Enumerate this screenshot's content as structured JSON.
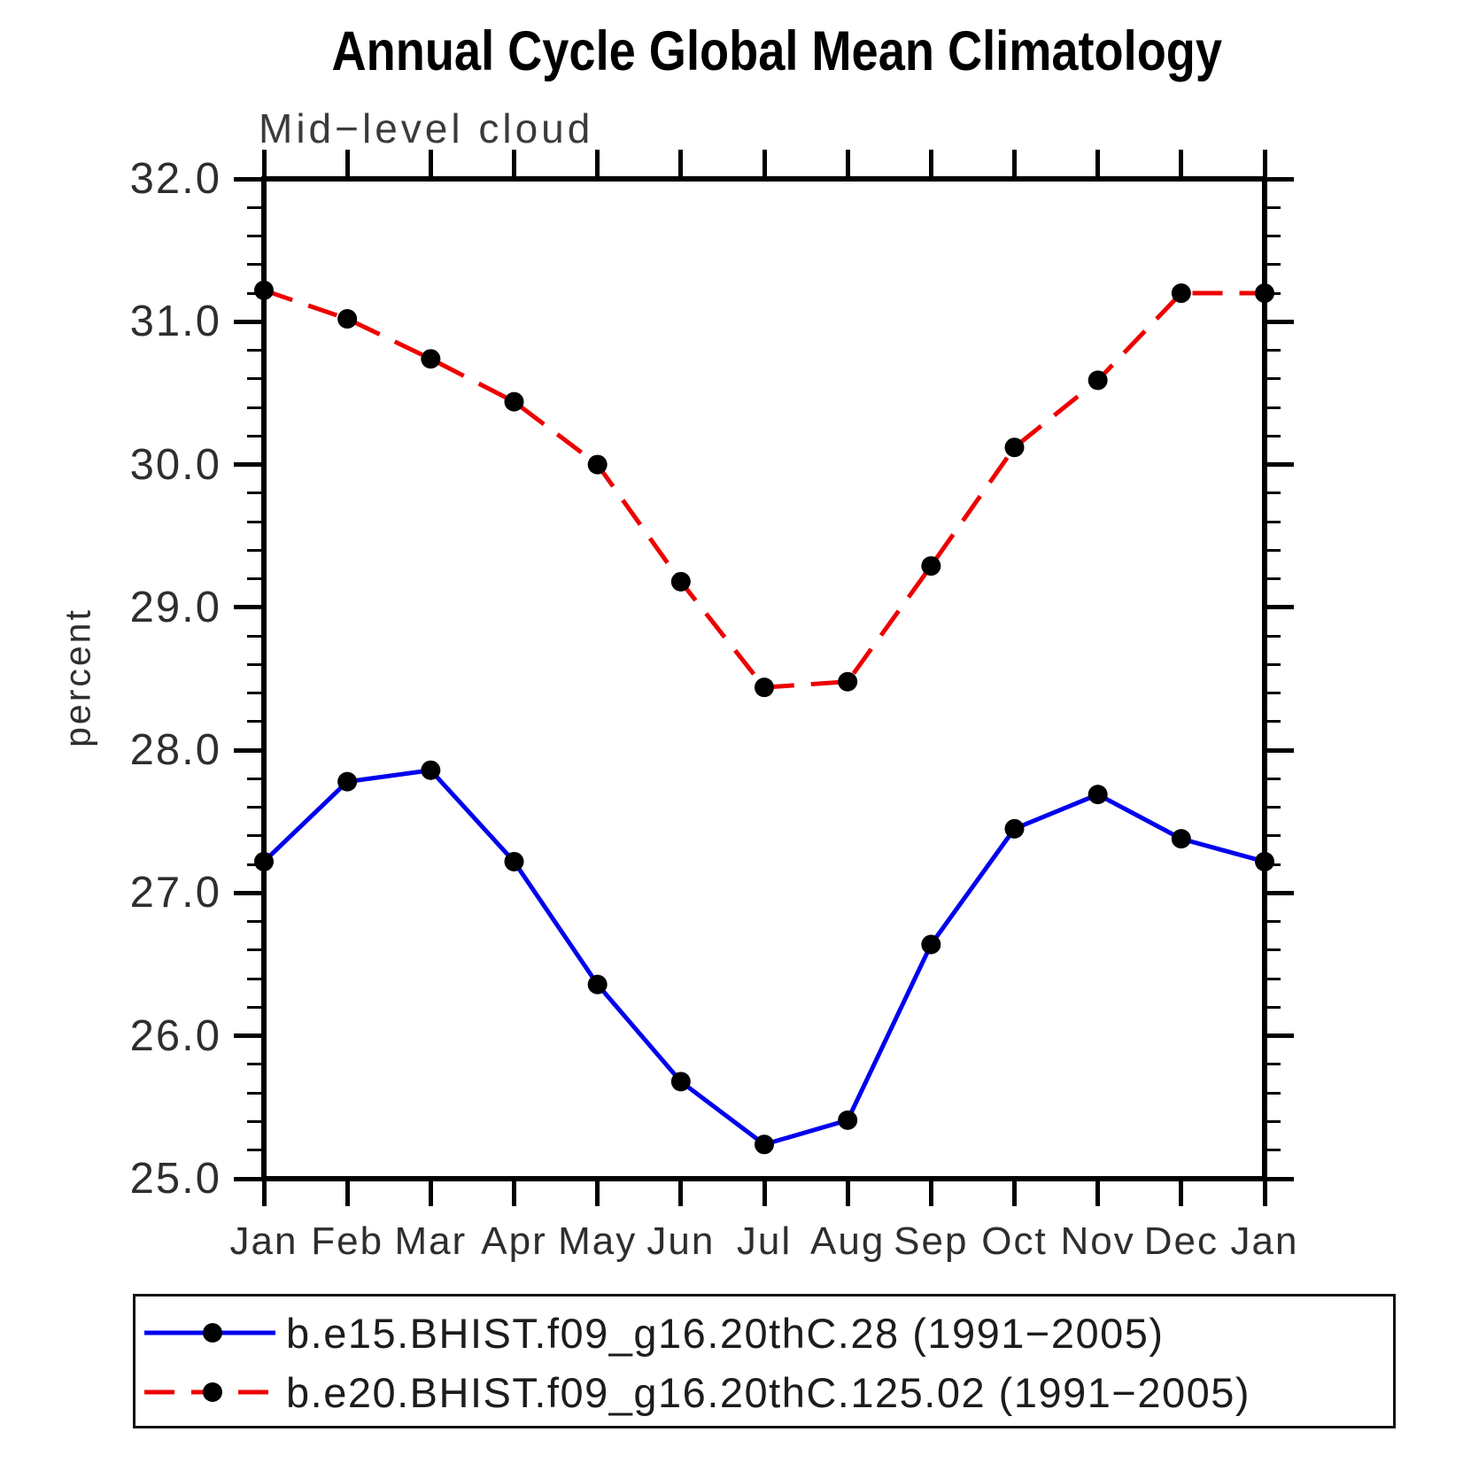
{
  "header": {
    "title": "Annual Cycle Global Mean Climatology"
  },
  "chart_data": {
    "type": "line",
    "title": "Annual Cycle Global Mean Climatology",
    "subtitle": "Mid−level cloud",
    "ylabel": "percent",
    "ylim": [
      25.0,
      32.0
    ],
    "y_major_step": 1.0,
    "y_minor_step": 0.2,
    "y_tick_labels": [
      "32.0",
      "31.0",
      "30.0",
      "29.0",
      "28.0",
      "27.0",
      "26.0",
      "25.0"
    ],
    "categories": [
      "Jan",
      "Feb",
      "Mar",
      "Apr",
      "May",
      "Jun",
      "Jul",
      "Aug",
      "Sep",
      "Oct",
      "Nov",
      "Dec",
      "Jan"
    ],
    "grid": false,
    "legend_position": "bottom",
    "marker_color": "#000000",
    "series": [
      {
        "name": "b.e15.BHIST.f09_g16.20thC.28 (1991−2005)",
        "color": "#0000EE",
        "style": "solid",
        "marker": "circle",
        "values": [
          27.22,
          27.78,
          27.86,
          27.22,
          26.36,
          25.68,
          25.24,
          25.41,
          26.64,
          27.45,
          27.69,
          27.38,
          27.22
        ]
      },
      {
        "name": "b.e20.BHIST.f09_g16.20thC.125.02 (1991−2005)",
        "color": "#EE0000",
        "style": "dashed",
        "marker": "circle",
        "values": [
          31.22,
          31.02,
          30.74,
          30.44,
          30.0,
          29.18,
          28.44,
          28.48,
          29.29,
          30.12,
          30.59,
          31.2,
          31.2
        ]
      }
    ]
  }
}
